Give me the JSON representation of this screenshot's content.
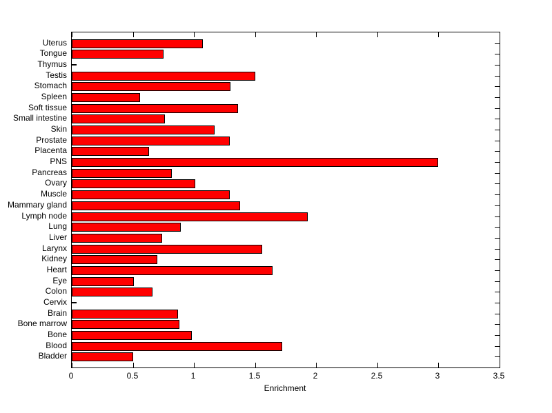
{
  "chart_data": {
    "type": "bar",
    "orientation": "horizontal",
    "title": "",
    "xlabel": "Enrichment",
    "categories": [
      "Uterus",
      "Tongue",
      "Thymus",
      "Testis",
      "Stomach",
      "Spleen",
      "Soft tissue",
      "Small intestine",
      "Skin",
      "Prostate",
      "Placenta",
      "PNS",
      "Pancreas",
      "Ovary",
      "Muscle",
      "Mammary gland",
      "Lymph node",
      "Lung",
      "Liver",
      "Larynx",
      "Kidney",
      "Heart",
      "Eye",
      "Colon",
      "Cervix",
      "Brain",
      "Bone marrow",
      "Bone",
      "Blood",
      "Bladder"
    ],
    "values": [
      1.07,
      0.75,
      0,
      1.5,
      1.3,
      0.56,
      1.36,
      0.76,
      1.17,
      1.29,
      0.63,
      3.0,
      0.82,
      1.01,
      1.29,
      1.38,
      1.93,
      0.89,
      0.74,
      1.56,
      0.7,
      1.64,
      0.51,
      0.66,
      0,
      0.87,
      0.88,
      0.98,
      1.72,
      0.5
    ],
    "xlim": [
      0,
      3.5
    ],
    "xticks": [
      0,
      0.5,
      1,
      1.5,
      2,
      2.5,
      3,
      3.5
    ],
    "xtick_labels": [
      "0",
      "0.5",
      "1",
      "1.5",
      "2",
      "2.5",
      "3",
      "3.5"
    ],
    "grid": false,
    "legend": null,
    "bar_color": "#FF0000",
    "bar_edge_color": "#000000",
    "axis_color": "#000000",
    "background_color": "#FFFFFF"
  }
}
